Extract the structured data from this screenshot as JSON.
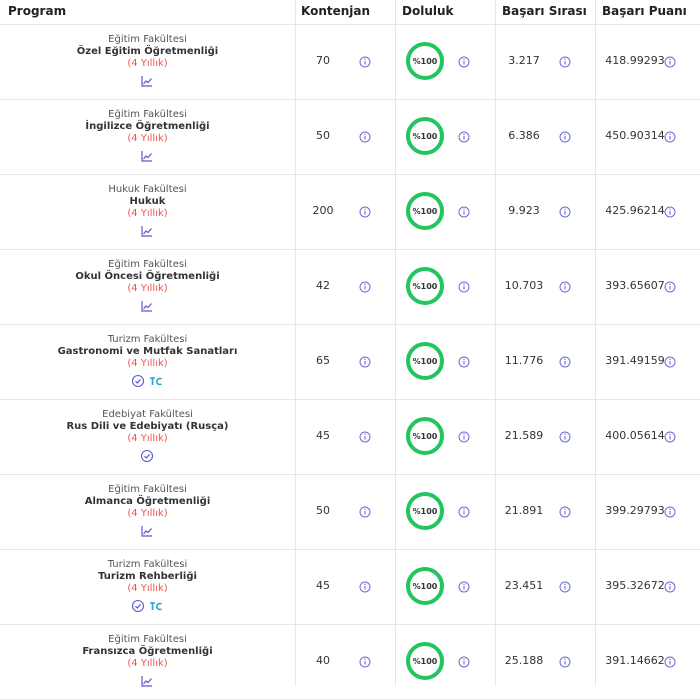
{
  "table": {
    "columns": [
      "Program",
      "Kontenjan",
      "Doluluk",
      "Başarı Sırası",
      "Başarı Puanı"
    ],
    "rows": [
      {
        "faculty": "Eğitim Fakültesi",
        "program": "Özel Eğitim Öğretmenliği",
        "duration": "(4 Yıllık)",
        "quota": "70",
        "fill": "%100",
        "rank": "3.217",
        "score": "418.99293"
      },
      {
        "faculty": "Eğitim Fakültesi",
        "program": "İngilizce Öğretmenliği",
        "duration": "(4 Yıllık)",
        "quota": "50",
        "fill": "%100",
        "rank": "6.386",
        "score": "450.90314"
      },
      {
        "faculty": "Hukuk Fakültesi",
        "program": "Hukuk",
        "duration": "(4 Yıllık)",
        "quota": "200",
        "fill": "%100",
        "rank": "9.923",
        "score": "425.96214"
      },
      {
        "faculty": "Eğitim Fakültesi",
        "program": "Okul Öncesi Öğretmenliği",
        "duration": "(4 Yıllık)",
        "quota": "42",
        "fill": "%100",
        "rank": "10.703",
        "score": "393.65607"
      },
      {
        "faculty": "Turizm Fakültesi",
        "program": "Gastronomi ve Mutfak Sanatları",
        "duration": "(4 Yıllık)",
        "quota": "65",
        "fill": "%100",
        "rank": "11.776",
        "score": "391.49159"
      },
      {
        "faculty": "Edebiyat Fakültesi",
        "program": "Rus Dili ve Edebiyatı (Rusça)",
        "duration": "(4 Yıllık)",
        "quota": "45",
        "fill": "%100",
        "rank": "21.589",
        "score": "400.05614"
      },
      {
        "faculty": "Eğitim Fakültesi",
        "program": "Almanca Öğretmenliği",
        "duration": "(4 Yıllık)",
        "quota": "50",
        "fill": "%100",
        "rank": "21.891",
        "score": "399.29793"
      },
      {
        "faculty": "Turizm Fakültesi",
        "program": "Turizm Rehberliği",
        "duration": "(4 Yıllık)",
        "quota": "45",
        "fill": "%100",
        "rank": "23.451",
        "score": "395.32672"
      },
      {
        "faculty": "Eğitim Fakültesi",
        "program": "Fransızca Öğretmenliği",
        "duration": "(4 Yıllık)",
        "quota": "40",
        "fill": "%100",
        "rank": "25.188",
        "score": "391.14662"
      }
    ]
  }
}
